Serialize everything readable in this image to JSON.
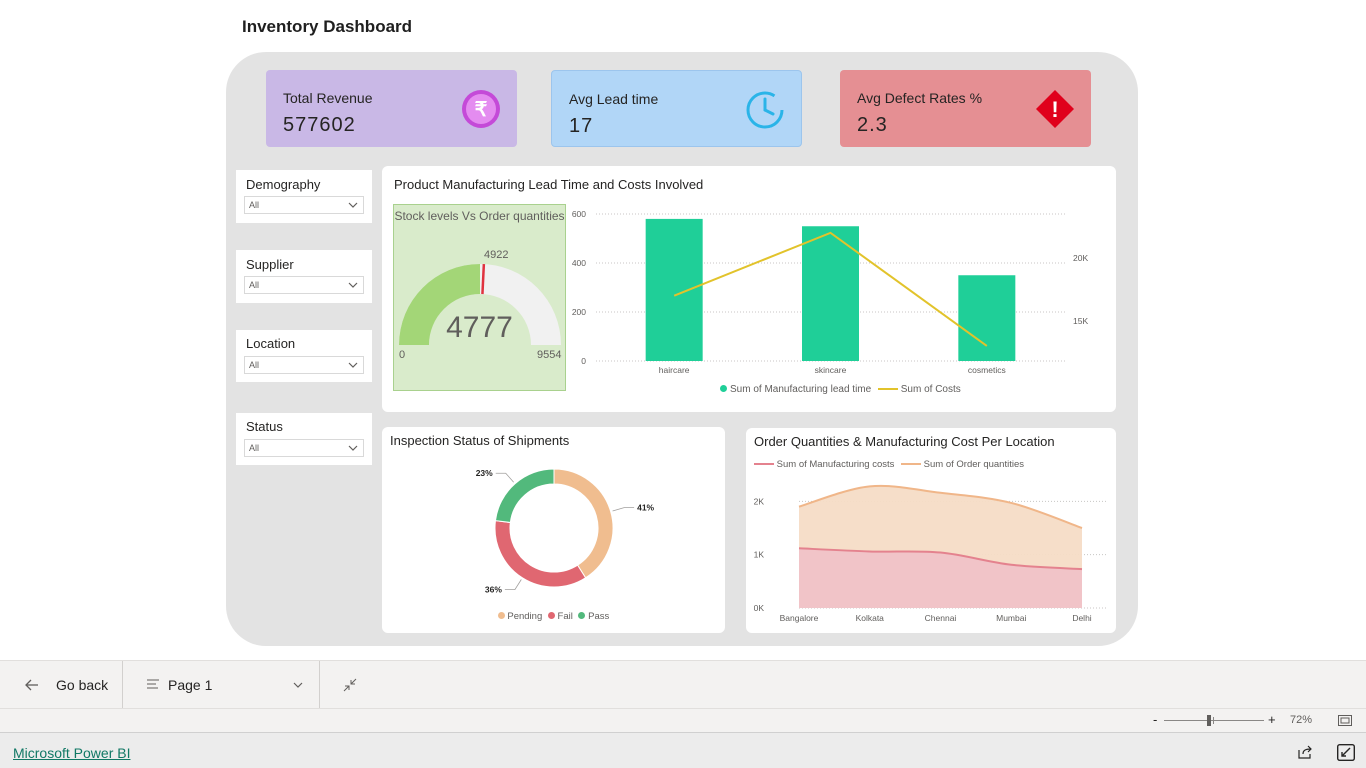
{
  "page": {
    "title": "Inventory Dashboard"
  },
  "kpis": [
    {
      "label": "Total Revenue",
      "value": "577602",
      "color": "#c9b8e6",
      "icon": "rupee-icon"
    },
    {
      "label": "Avg Lead time",
      "value": "17",
      "color": "#b1d6f7",
      "icon": "clock-icon"
    },
    {
      "label": "Avg Defect Rates %",
      "value": "2.3",
      "color": "#e58f93",
      "icon": "warning-icon"
    }
  ],
  "slicers": [
    {
      "title": "Demography",
      "value": "All"
    },
    {
      "title": "Supplier",
      "value": "All"
    },
    {
      "title": "Location",
      "value": "All"
    },
    {
      "title": "Status",
      "value": "All"
    }
  ],
  "lead_time_card": {
    "title": "Product Manufacturing Lead Time and Costs Involved"
  },
  "gauge": {
    "title": "Stock levels Vs Order quantities",
    "value": "4777",
    "target": "4922",
    "min": "0",
    "max": "9554"
  },
  "combo_legend": {
    "bar": "Sum of Manufacturing lead time",
    "line": "Sum of Costs"
  },
  "inspection_card": {
    "title": "Inspection Status of Shipments",
    "legend": [
      "Pending",
      "Fail",
      "Pass"
    ]
  },
  "location_card": {
    "title": "Order Quantities & Manufacturing Cost Per Location",
    "legend": [
      "Sum of Manufacturing costs",
      "Sum of Order quantities"
    ]
  },
  "chart_data": [
    {
      "type": "bar",
      "categories": [
        "haircare",
        "skincare",
        "cosmetics"
      ],
      "series": [
        {
          "name": "Sum of Manufacturing lead time",
          "values": [
            580,
            550,
            350
          ],
          "axis": "left",
          "color": "#1fcf98"
        },
        {
          "name": "Sum of Costs",
          "values": [
            17000,
            22000,
            13000
          ],
          "axis": "right",
          "kind": "line",
          "color": "#e2c32b"
        }
      ],
      "ylim": [
        0,
        600
      ],
      "yticks": [
        "0",
        "200",
        "400",
        "600"
      ],
      "y2ticks": [
        "15K",
        "20K"
      ],
      "y2lim": [
        11800,
        23500
      ]
    },
    {
      "type": "pie",
      "style": "donut",
      "labels": [
        "Pending",
        "Fail",
        "Pass"
      ],
      "values": [
        41,
        36,
        23
      ],
      "display": [
        "41%",
        "36%",
        "23%"
      ],
      "colors": [
        "#f0bd8f",
        "#e06771",
        "#52b97c"
      ]
    },
    {
      "type": "area",
      "categories": [
        "Bangalore",
        "Kolkata",
        "Chennai",
        "Mumbai",
        "Delhi"
      ],
      "series": [
        {
          "name": "Sum of Order quantities",
          "values": [
            1900,
            2280,
            2160,
            1970,
            1500
          ],
          "color": "#f0b689"
        },
        {
          "name": "Sum of Manufacturing costs",
          "values": [
            1120,
            1060,
            1040,
            810,
            730
          ],
          "color": "#e4828e"
        }
      ],
      "ylim": [
        0,
        2400
      ],
      "yticks": [
        "0K",
        "1K",
        "2K"
      ]
    }
  ],
  "nav": {
    "back_label": "Go back",
    "page_label": "Page 1"
  },
  "zoom": {
    "minus": "-",
    "plus": "+",
    "level": "72%",
    "fraction": 0.45
  },
  "footer": {
    "link": "Microsoft Power BI"
  }
}
